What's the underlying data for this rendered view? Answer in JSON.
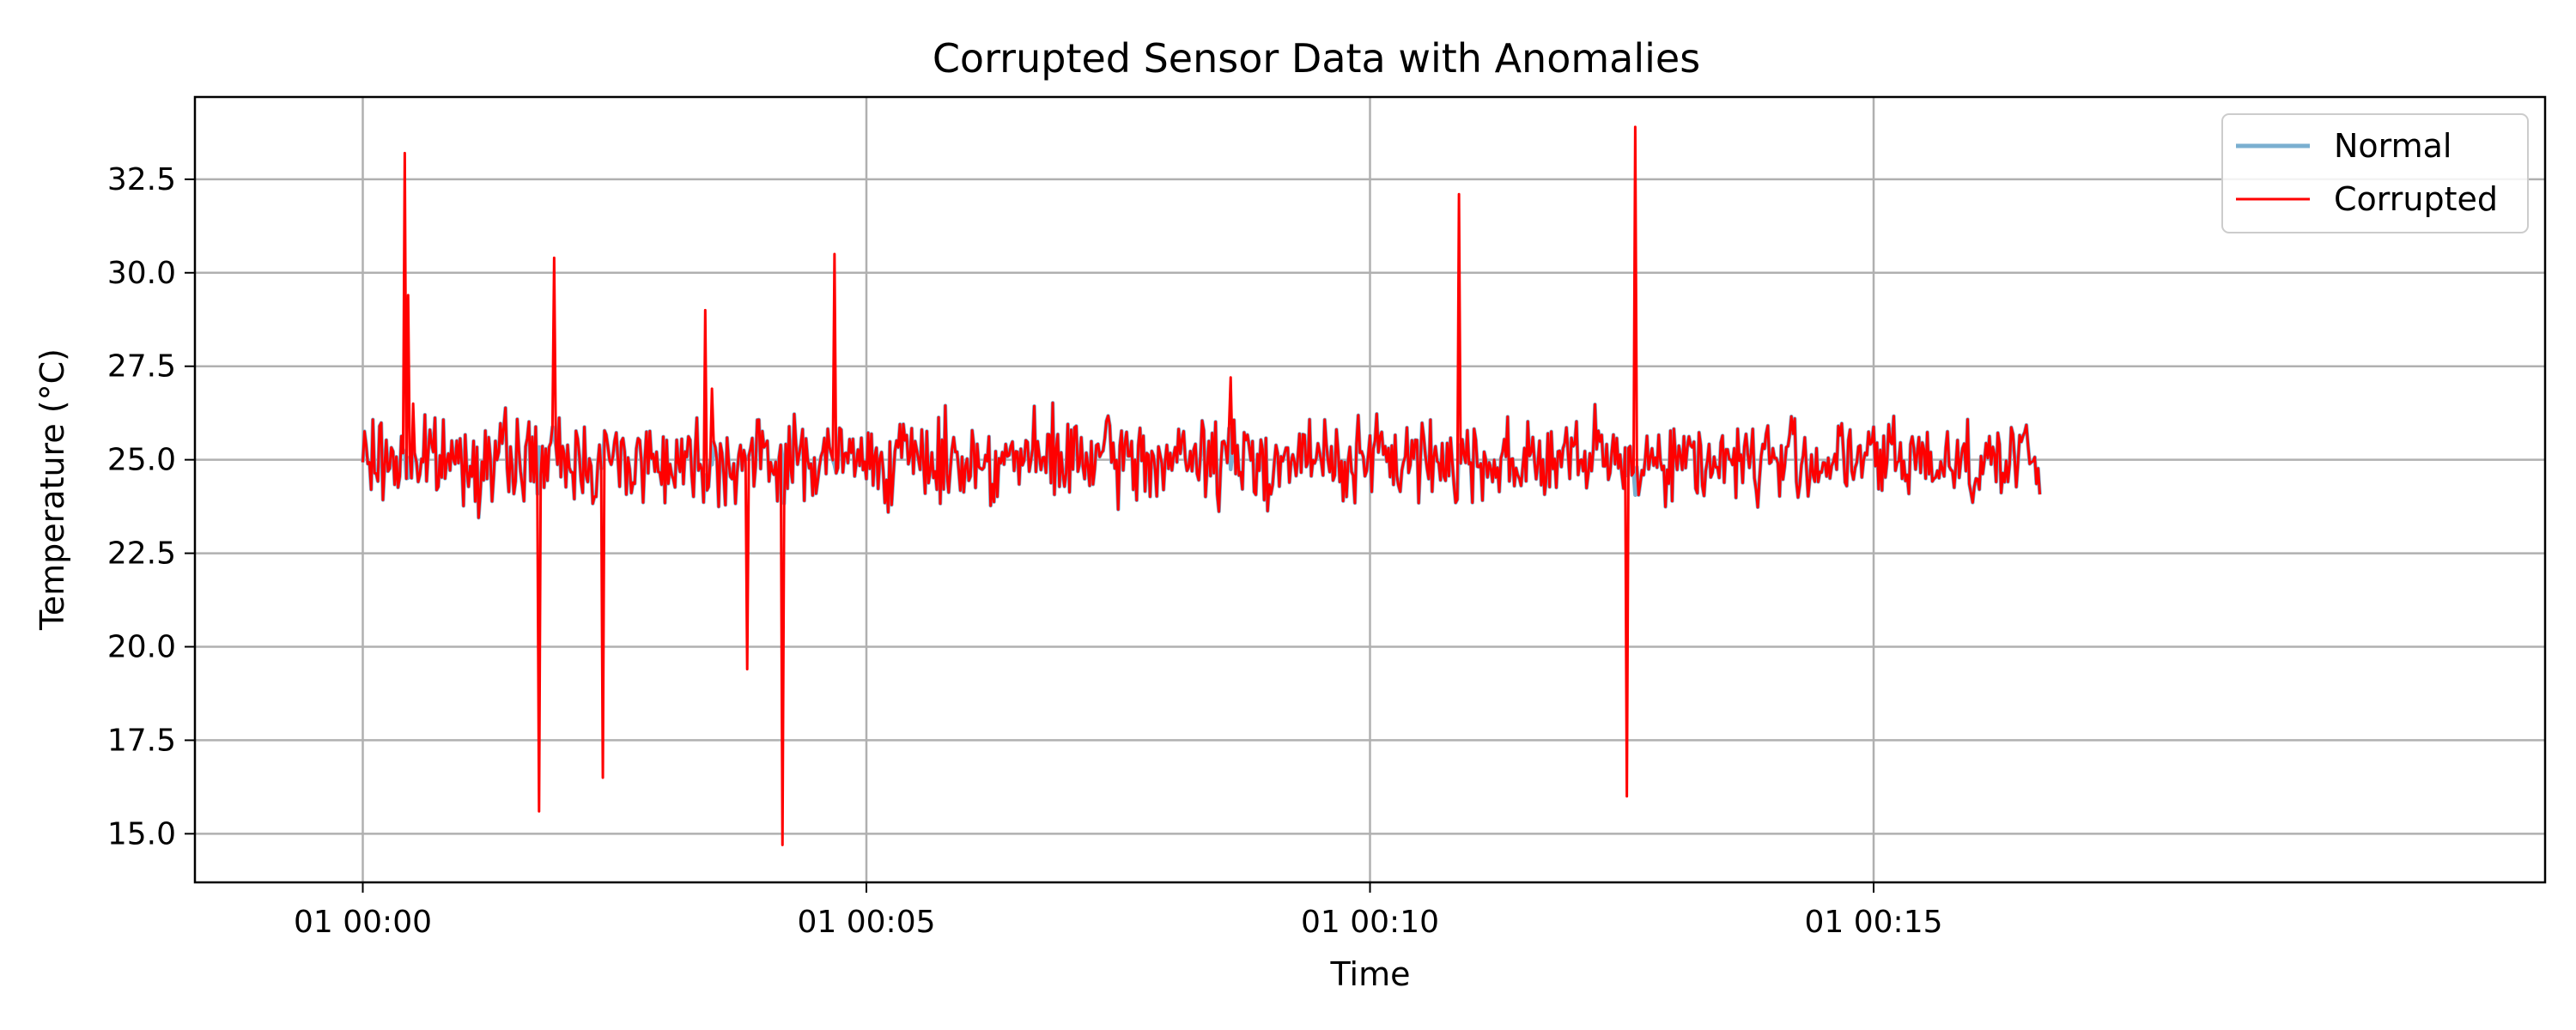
{
  "chart_data": {
    "type": "line",
    "title": "Corrupted Sensor Data with Anomalies",
    "xlabel": "Time",
    "ylabel": "Temperature (°C)",
    "x_unit": "seconds from 01 00:00",
    "xlim": [
      -100,
      1300
    ],
    "ylim": [
      13.7,
      34.7
    ],
    "grid": true,
    "legend_position": "top-right",
    "x_ticks": [
      {
        "value": 0,
        "label": "01 00:00"
      },
      {
        "value": 300,
        "label": "01 00:05"
      },
      {
        "value": 600,
        "label": "01 00:10"
      },
      {
        "value": 900,
        "label": "01 00:15"
      }
    ],
    "y_ticks": [
      {
        "value": 15.0,
        "label": "15.0"
      },
      {
        "value": 17.5,
        "label": "17.5"
      },
      {
        "value": 20.0,
        "label": "20.0"
      },
      {
        "value": 22.5,
        "label": "22.5"
      },
      {
        "value": 25.0,
        "label": "25.0"
      },
      {
        "value": 27.5,
        "label": "27.5"
      },
      {
        "value": 30.0,
        "label": "30.0"
      },
      {
        "value": 32.5,
        "label": "32.5"
      }
    ],
    "x_range": [
      0,
      999
    ],
    "baseline": 25.0,
    "noise_amplitude": 0.55,
    "anomalies": [
      {
        "x": 25,
        "y": 33.2
      },
      {
        "x": 27,
        "y": 29.4
      },
      {
        "x": 30,
        "y": 26.5
      },
      {
        "x": 105,
        "y": 15.6
      },
      {
        "x": 114,
        "y": 30.4
      },
      {
        "x": 143,
        "y": 16.5
      },
      {
        "x": 204,
        "y": 29.0
      },
      {
        "x": 208,
        "y": 26.9
      },
      {
        "x": 229,
        "y": 19.4
      },
      {
        "x": 250,
        "y": 14.7
      },
      {
        "x": 281,
        "y": 30.5
      },
      {
        "x": 517,
        "y": 27.2
      },
      {
        "x": 653,
        "y": 32.1
      },
      {
        "x": 753,
        "y": 16.0
      },
      {
        "x": 758,
        "y": 33.9
      }
    ],
    "series": [
      {
        "name": "Normal",
        "color": "#7aafd0"
      },
      {
        "name": "Corrupted",
        "color": "#ff0000"
      }
    ]
  }
}
